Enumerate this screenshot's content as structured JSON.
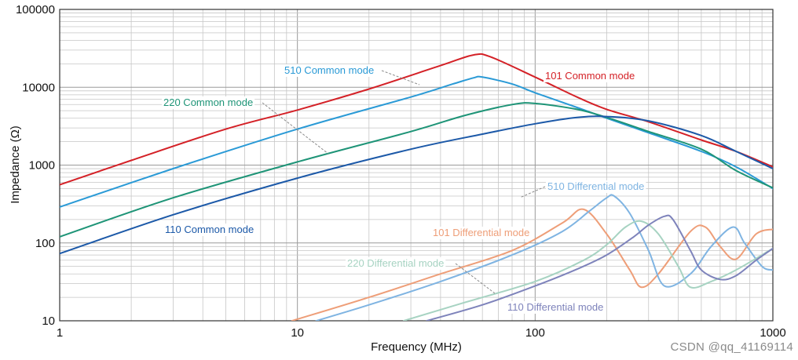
{
  "chart_data": {
    "type": "line",
    "title": "",
    "xlabel": "Frequency (MHz)",
    "ylabel": "Impedance (Ω)",
    "xscale": "log",
    "yscale": "log",
    "xlim": [
      1,
      1000
    ],
    "ylim": [
      10,
      100000
    ],
    "x_ticks": [
      {
        "value": 1,
        "label": "1"
      },
      {
        "value": 10,
        "label": "10"
      },
      {
        "value": 100,
        "label": "100"
      },
      {
        "value": 1000,
        "label": "1000"
      }
    ],
    "y_ticks": [
      {
        "value": 10,
        "label": "10"
      },
      {
        "value": 100,
        "label": "100"
      },
      {
        "value": 1000,
        "label": "1000"
      },
      {
        "value": 10000,
        "label": "10000"
      },
      {
        "value": 100000,
        "label": "100000"
      }
    ],
    "grid": true,
    "series": [
      {
        "name": "101 Common mode",
        "color": "#d42127",
        "x": [
          1,
          2,
          5,
          10,
          20,
          40,
          55,
          65,
          100,
          150,
          200,
          300,
          500,
          700,
          1000
        ],
        "y": [
          560,
          1150,
          2900,
          5100,
          9500,
          19000,
          26000,
          24500,
          13500,
          7500,
          5200,
          3600,
          2100,
          1500,
          950
        ]
      },
      {
        "name": "510 Common mode",
        "color": "#2a9ad6",
        "x": [
          1,
          3,
          10,
          30,
          45,
          55,
          60,
          80,
          100,
          150,
          200,
          300,
          500,
          700,
          1000
        ],
        "y": [
          290,
          900,
          2900,
          7500,
          11000,
          13200,
          13500,
          11000,
          8500,
          5500,
          4000,
          2600,
          1500,
          950,
          500
        ]
      },
      {
        "name": "220 Common mode",
        "color": "#1e9477",
        "x": [
          1,
          3,
          10,
          30,
          50,
          80,
          100,
          150,
          200,
          300,
          500,
          700,
          1000
        ],
        "y": [
          120,
          380,
          1100,
          2700,
          4300,
          6000,
          6200,
          5200,
          4100,
          2700,
          1600,
          850,
          510
        ]
      },
      {
        "name": "110 Common mode",
        "color": "#1c59a8",
        "x": [
          1,
          3,
          10,
          30,
          60,
          100,
          150,
          200,
          300,
          500,
          700,
          1000
        ],
        "y": [
          73,
          230,
          680,
          1600,
          2500,
          3400,
          4100,
          4200,
          3700,
          2400,
          1500,
          900
        ]
      },
      {
        "name": "101 Differential mode",
        "color": "#ee9e78",
        "x": [
          9.5,
          20,
          40,
          80,
          130,
          160,
          200,
          250,
          280,
          330,
          450,
          520,
          600,
          700,
          850,
          1000
        ],
        "y": [
          10,
          20,
          40,
          80,
          180,
          270,
          130,
          45,
          27,
          40,
          140,
          160,
          90,
          62,
          130,
          150
        ]
      },
      {
        "name": "510 Differential mode",
        "color": "#7fb4e2",
        "x": [
          12,
          20,
          40,
          80,
          130,
          170,
          200,
          215,
          250,
          300,
          350,
          450,
          550,
          680,
          760,
          900,
          1000
        ],
        "y": [
          10,
          16,
          32,
          70,
          140,
          260,
          380,
          400,
          240,
          80,
          28,
          40,
          90,
          160,
          100,
          50,
          45
        ]
      },
      {
        "name": "220  Differential mode",
        "color": "#a7d3c2",
        "x": [
          28,
          50,
          100,
          160,
          200,
          240,
          280,
          330,
          400,
          450,
          550,
          700,
          1000
        ],
        "y": [
          10,
          17,
          32,
          60,
          95,
          160,
          190,
          130,
          50,
          27,
          32,
          45,
          85
        ]
      },
      {
        "name": "110 Differential mode",
        "color": "#7e83bb",
        "x": [
          35,
          60,
          100,
          150,
          200,
          260,
          300,
          350,
          380,
          450,
          500,
          600,
          700,
          850,
          1000
        ],
        "y": [
          10,
          16,
          28,
          46,
          70,
          120,
          170,
          220,
          200,
          80,
          45,
          34,
          38,
          60,
          85
        ]
      }
    ],
    "annotations": [
      {
        "text": "510 Common mode",
        "series": 1
      },
      {
        "text": "101 Common mode",
        "series": 0
      },
      {
        "text": "220 Common mode",
        "series": 2
      },
      {
        "text": "110 Common mode",
        "series": 3
      },
      {
        "text": "510 Differential mode",
        "series": 5
      },
      {
        "text": "101 Differential mode",
        "series": 4
      },
      {
        "text": "220  Differential mode",
        "series": 6
      },
      {
        "text": "110 Differential mode",
        "series": 7
      }
    ]
  },
  "watermark": "CSDN @qq_41169114"
}
